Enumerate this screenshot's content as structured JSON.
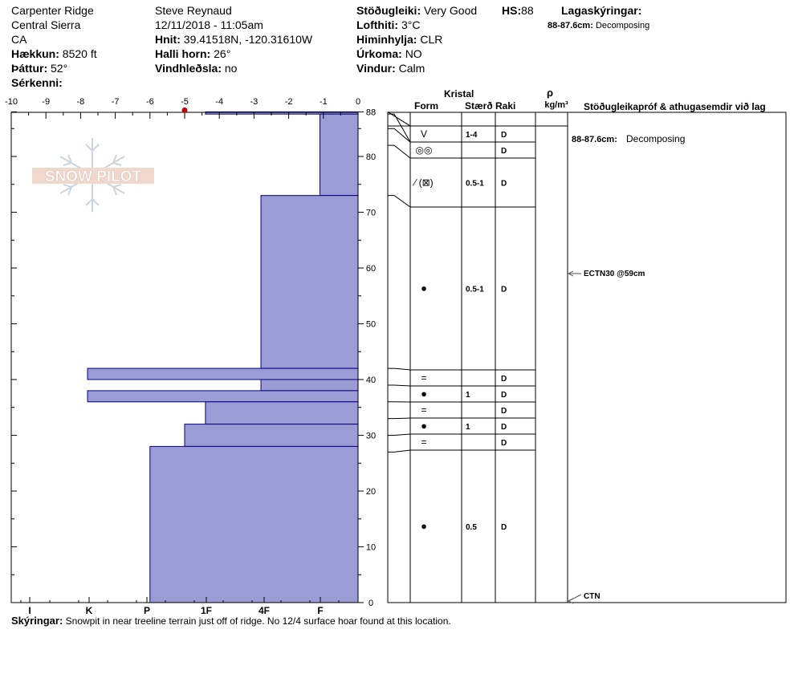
{
  "header": {
    "location": "Carpenter Ridge",
    "range": "Central Sierra",
    "state": "CA",
    "elevation_label": "Hækkun:",
    "elevation": "8520 ft",
    "aspect_label": "Þáttur:",
    "aspect": "52°",
    "specifics_label": "Sérkenni:",
    "observer": "Steve Reynaud",
    "datetime": "12/11/2018 - 11:05am",
    "coords_label": "Hnit:",
    "coords": "39.41518N, -120.31610W",
    "slope_label": "Halli horn:",
    "slope": "26°",
    "wind_loading_label": "Vindhleðsla:",
    "wind_loading": "no",
    "stability_label": "Stöðugleiki:",
    "stability": "Very Good",
    "hs_label": "HS:",
    "hs": "88",
    "air_temp_label": "Lofthiti:",
    "air_temp": "3°C",
    "sky_label": "Himinhylja:",
    "sky": "CLR",
    "precip_label": "Úrkoma:",
    "precip": "NO",
    "wind_label": "Vindur:",
    "wind": "Calm",
    "layer_notes_label": "Lagaskýringar:",
    "layer_note": "88-87.6cm:",
    "layer_note_text": "Decomposing"
  },
  "logo_text": "SNOW PILOT",
  "chart_data": {
    "type": "bar",
    "temp_axis": {
      "ticks": [
        "-10",
        "-9",
        "-8",
        "-7",
        "-6",
        "-5",
        "-4",
        "-3",
        "-2",
        "-1",
        "0"
      ],
      "range": [
        -10,
        0
      ]
    },
    "depth_axis": {
      "ticks": [
        "0",
        "10",
        "20",
        "30",
        "40",
        "50",
        "60",
        "70",
        "80",
        "88"
      ],
      "range": [
        0,
        88
      ]
    },
    "hardness_axis": {
      "ticks": [
        "I",
        "K",
        "P",
        "1F",
        "4F",
        "F"
      ]
    },
    "snow_temps": [
      {
        "depth": 88,
        "temp": -5
      }
    ],
    "hardness_profile": [
      {
        "top": 88,
        "bottom": 87.6,
        "hardness": 4.4
      },
      {
        "top": 87.6,
        "bottom": 73,
        "hardness": 1.1
      },
      {
        "top": 73,
        "bottom": 42,
        "hardness": 2.8
      },
      {
        "top": 42,
        "bottom": 40,
        "hardness": 7.8
      },
      {
        "top": 40,
        "bottom": 38,
        "hardness": 2.8
      },
      {
        "top": 38,
        "bottom": 36,
        "hardness": 7.8
      },
      {
        "top": 36,
        "bottom": 32,
        "hardness": 4.4
      },
      {
        "top": 32,
        "bottom": 28,
        "hardness": 5.0
      },
      {
        "top": 28,
        "bottom": 0,
        "hardness": 6.0
      }
    ],
    "colors": {
      "bar": "#9b9bd6",
      "bar_border": "#000080",
      "temp_point": "#cc0000"
    }
  },
  "table": {
    "crystal_header": "Kristal",
    "form_header": "Form",
    "size_header": "Stærð",
    "moisture_header": "Raki",
    "density_header": "ρ",
    "density_unit": "kg/m³",
    "tests_header": "Stöðugleikapróf & athugasemdir við lag",
    "rows": [
      {
        "top": 88,
        "bottom": 85,
        "form": "V",
        "size": "1-4",
        "moist": "D"
      },
      {
        "top": 85,
        "bottom": 82,
        "form": "◎◎",
        "size": "",
        "moist": "D"
      },
      {
        "top": 82,
        "bottom": 73,
        "form": "⁄ (⊠)",
        "size": "0.5-1",
        "moist": "D"
      },
      {
        "top": 73,
        "bottom": 42,
        "form": "●",
        "size": "0.5-1",
        "moist": "D"
      },
      {
        "top": 42,
        "bottom": 39,
        "form": "=",
        "size": "",
        "moist": "D"
      },
      {
        "top": 39,
        "bottom": 36,
        "form": "●",
        "size": "1",
        "moist": "D"
      },
      {
        "top": 36,
        "bottom": 33,
        "form": "=",
        "size": "",
        "moist": "D"
      },
      {
        "top": 33,
        "bottom": 30,
        "form": "●",
        "size": "1",
        "moist": "D"
      },
      {
        "top": 30,
        "bottom": 27,
        "form": "=",
        "size": "",
        "moist": "D"
      },
      {
        "top": 27,
        "bottom": 0,
        "form": "●",
        "size": "0.5",
        "moist": "D"
      }
    ],
    "layer_comment_label": "88-87.6cm:",
    "layer_comment": "Decomposing",
    "tests": [
      {
        "depth": 59,
        "label": "ECTN30 @59cm"
      },
      {
        "depth": 0,
        "label": "CTN"
      }
    ]
  },
  "footer": {
    "label": "Skýringar:",
    "text": "Snowpit in near treeline terrain just off of ridge.  No 12/4 surface hoar found at this location."
  }
}
